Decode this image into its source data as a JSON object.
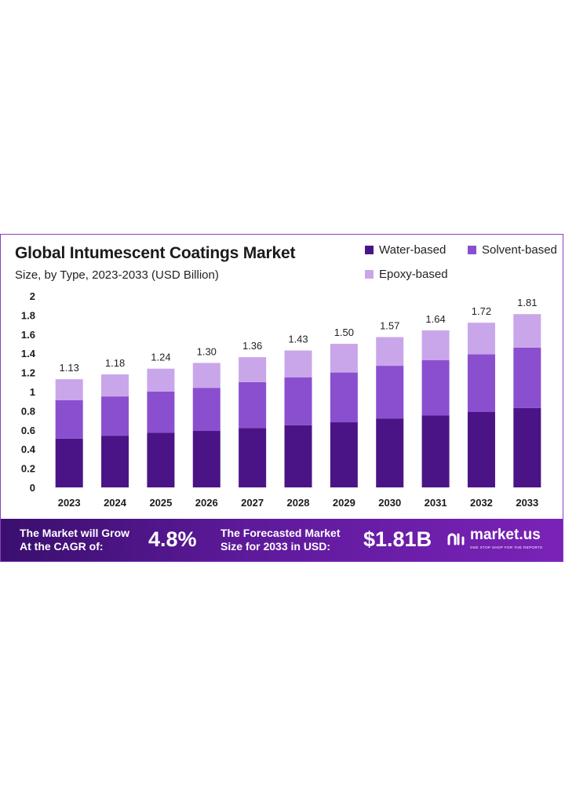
{
  "chart_data": {
    "type": "bar",
    "stacked": true,
    "title": "Global Intumescent Coatings Market",
    "subtitle": "Size, by Type, 2023-2033 (USD Billion)",
    "categories": [
      "2023",
      "2024",
      "2025",
      "2026",
      "2027",
      "2028",
      "2029",
      "2030",
      "2031",
      "2032",
      "2033"
    ],
    "series": [
      {
        "name": "Water-based",
        "color": "#4a1486",
        "values": [
          0.51,
          0.54,
          0.57,
          0.59,
          0.62,
          0.65,
          0.68,
          0.72,
          0.75,
          0.79,
          0.83
        ]
      },
      {
        "name": "Solvent-based",
        "color": "#8a4fcf",
        "values": [
          0.4,
          0.41,
          0.43,
          0.45,
          0.48,
          0.5,
          0.52,
          0.55,
          0.58,
          0.6,
          0.63
        ]
      },
      {
        "name": "Epoxy-based",
        "color": "#c9a6ea",
        "values": [
          0.22,
          0.23,
          0.24,
          0.26,
          0.26,
          0.28,
          0.3,
          0.3,
          0.31,
          0.33,
          0.35
        ]
      }
    ],
    "totals": [
      "1.13",
      "1.18",
      "1.24",
      "1.30",
      "1.36",
      "1.43",
      "1.50",
      "1.57",
      "1.64",
      "1.72",
      "1.81"
    ],
    "ylim": [
      0,
      2
    ],
    "yticks": [
      "0",
      "0.2",
      "0.4",
      "0.6",
      "0.8",
      "1",
      "1.2",
      "1.4",
      "1.6",
      "1.8",
      "2"
    ],
    "grid": false,
    "legend_position": "top-right"
  },
  "banner": {
    "cagr_label_line1": "The Market will Grow",
    "cagr_label_line2": "At the CAGR of:",
    "cagr_value": "4.8%",
    "forecast_label_line1": "The Forecasted Market",
    "forecast_label_line2": "Size for 2033 in USD:",
    "forecast_value": "$1.81B",
    "brand_name": "market.us",
    "brand_tagline": "ONE STOP SHOP FOR THE REPORTS"
  }
}
